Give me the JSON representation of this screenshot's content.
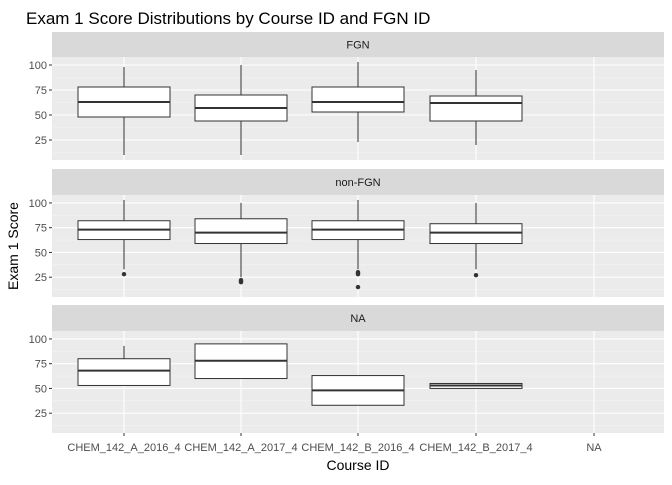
{
  "chart_data": {
    "type": "box",
    "title": "Exam 1 Score Distributions by Course ID and FGN ID",
    "xlabel": "Course ID",
    "ylabel": "Exam 1 Score",
    "categories": [
      "CHEM_142_A_2016_4",
      "CHEM_142_A_2017_4",
      "CHEM_142_B_2016_4",
      "CHEM_142_B_2017_4",
      "NA"
    ],
    "y_ticks": [
      25,
      50,
      75,
      100
    ],
    "ylim": [
      5,
      108
    ],
    "grid": true,
    "facet_layout": "rows",
    "colors": {
      "panel_background": "#ebebeb",
      "grid_major": "#ffffff",
      "grid_minor": "#f4f4f4",
      "strip_background": "#d9d9d9",
      "box_fill": "#ffffff",
      "box_stroke": "#333333",
      "text": "#4d4d4d"
    },
    "facets": [
      {
        "label": "FGN",
        "boxes": [
          {
            "category": "CHEM_142_A_2016_4",
            "min": 10,
            "q1": 48,
            "median": 63,
            "q3": 78,
            "max": 98,
            "outliers": []
          },
          {
            "category": "CHEM_142_A_2017_4",
            "min": 10,
            "q1": 44,
            "median": 57,
            "q3": 70,
            "max": 100,
            "outliers": []
          },
          {
            "category": "CHEM_142_B_2016_4",
            "min": 23,
            "q1": 53,
            "median": 63,
            "q3": 78,
            "max": 103,
            "outliers": []
          },
          {
            "category": "CHEM_142_B_2017_4",
            "min": 20,
            "q1": 44,
            "median": 62,
            "q3": 69,
            "max": 95,
            "outliers": []
          }
        ]
      },
      {
        "label": "non-FGN",
        "boxes": [
          {
            "category": "CHEM_142_A_2016_4",
            "min": 33,
            "q1": 63,
            "median": 73,
            "q3": 82,
            "max": 103,
            "outliers": [
              28
            ]
          },
          {
            "category": "CHEM_142_A_2017_4",
            "min": 25,
            "q1": 59,
            "median": 70,
            "q3": 84,
            "max": 100,
            "outliers": [
              20,
              21,
              22
            ]
          },
          {
            "category": "CHEM_142_B_2016_4",
            "min": 33,
            "q1": 63,
            "median": 73,
            "q3": 82,
            "max": 103,
            "outliers": [
              28,
              29,
              30,
              15
            ]
          },
          {
            "category": "CHEM_142_B_2017_4",
            "min": 33,
            "q1": 59,
            "median": 70,
            "q3": 79,
            "max": 100,
            "outliers": [
              27
            ]
          }
        ]
      },
      {
        "label": "NA",
        "boxes": [
          {
            "category": "CHEM_142_A_2016_4",
            "min": 53,
            "q1": 53,
            "median": 68,
            "q3": 80,
            "max": 93,
            "outliers": []
          },
          {
            "category": "CHEM_142_A_2017_4",
            "min": 60,
            "q1": 60,
            "median": 78,
            "q3": 95,
            "max": 95,
            "outliers": []
          },
          {
            "category": "CHEM_142_B_2016_4",
            "min": 33,
            "q1": 33,
            "median": 48,
            "q3": 63,
            "max": 63,
            "outliers": []
          },
          {
            "category": "CHEM_142_B_2017_4",
            "min": 50,
            "q1": 50,
            "median": 53,
            "q3": 55,
            "max": 55,
            "outliers": []
          }
        ]
      }
    ]
  }
}
